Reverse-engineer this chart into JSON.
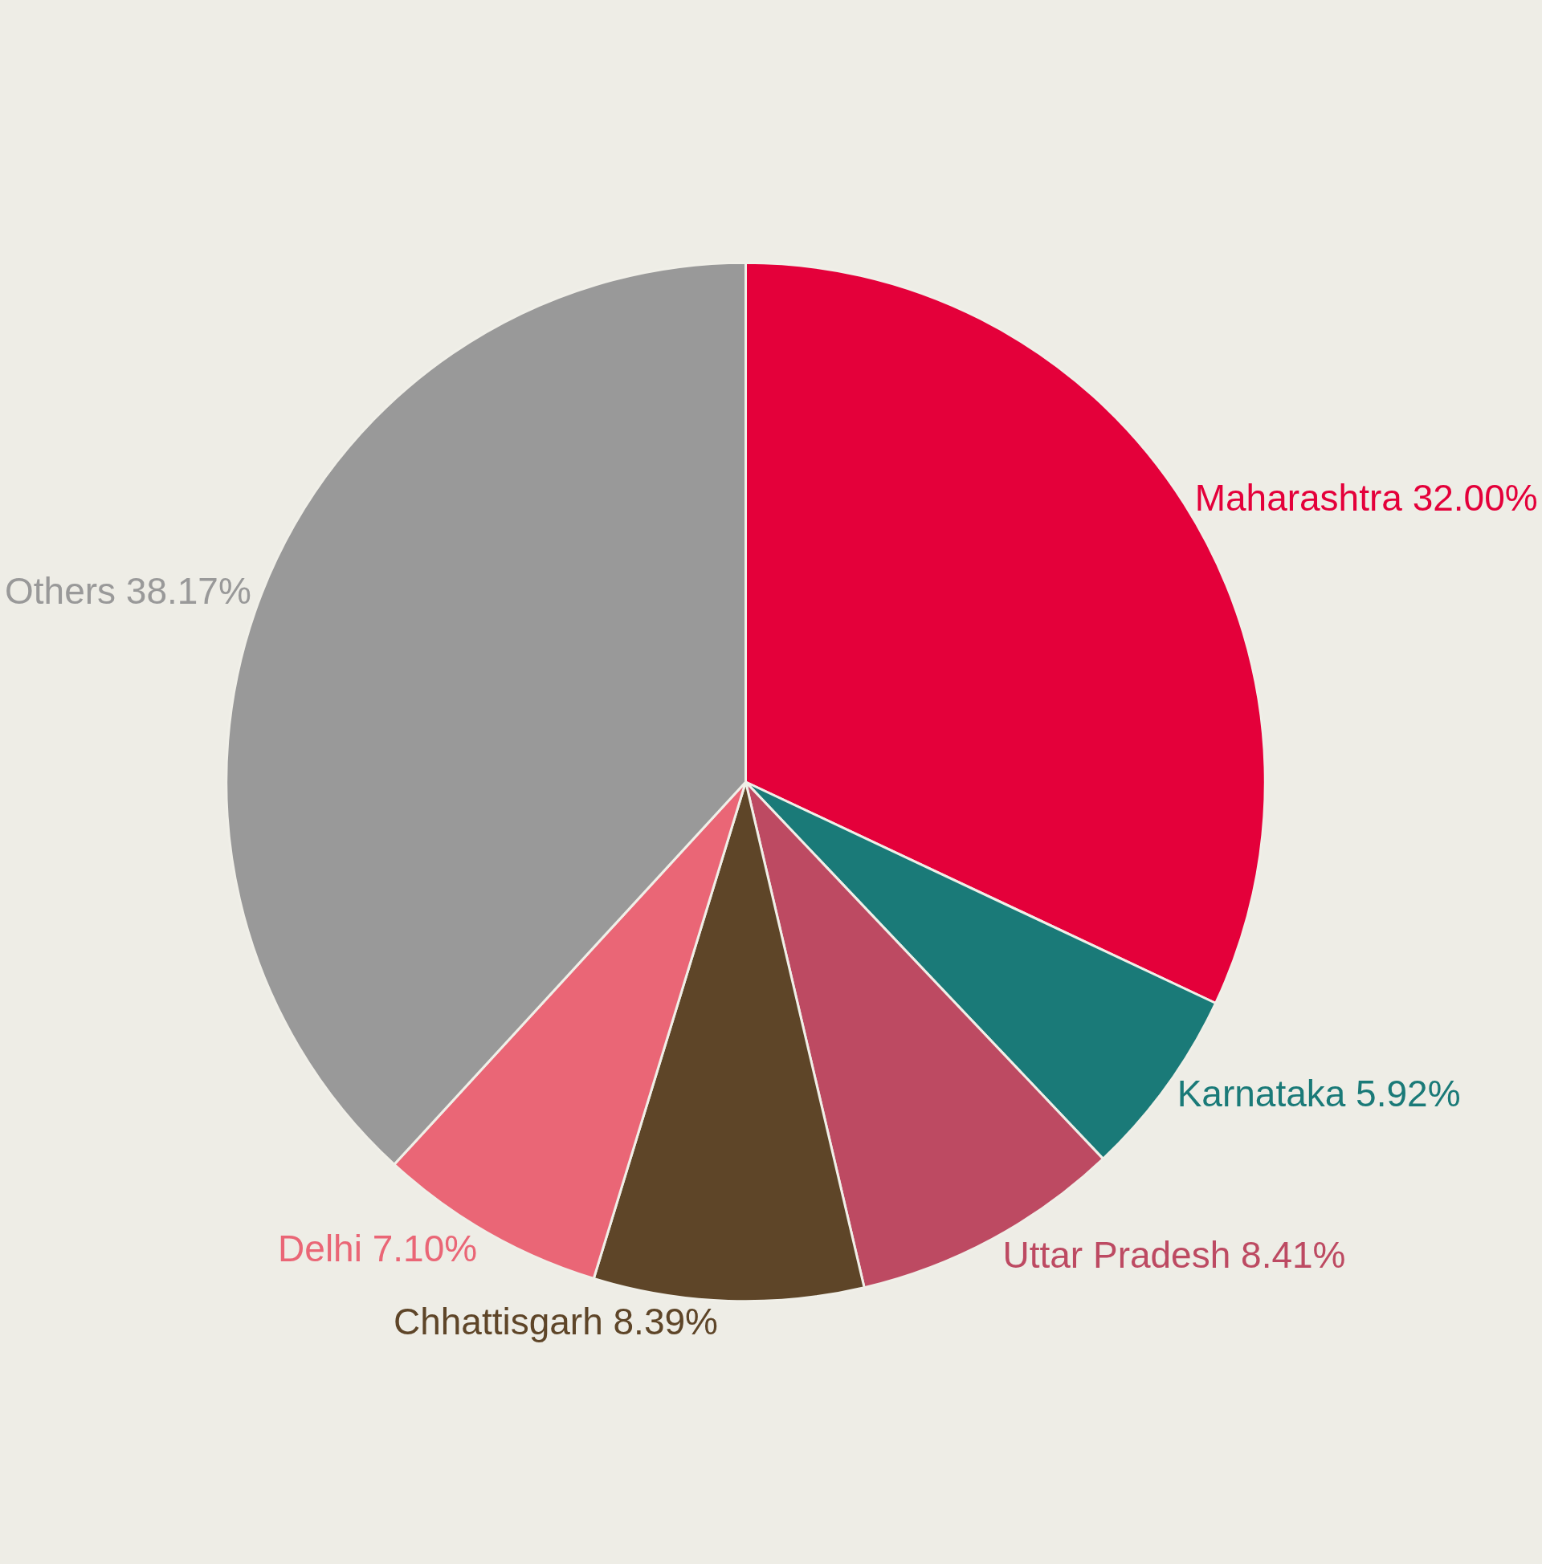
{
  "chart_data": {
    "type": "pie",
    "categories": [
      "Maharashtra",
      "Karnataka",
      "Uttar Pradesh",
      "Chhattisgarh",
      "Delhi",
      "Others"
    ],
    "values": [
      32.0,
      5.92,
      8.41,
      8.39,
      7.1,
      38.17
    ],
    "value_labels": [
      "32.00%",
      "5.92%",
      "8.41%",
      "8.39%",
      "7.10%",
      "38.17%"
    ],
    "colors": [
      "#e4003a",
      "#1a7a78",
      "#bd4a62",
      "#5e4528",
      "#ea6676",
      "#999999"
    ],
    "legend": false
  }
}
